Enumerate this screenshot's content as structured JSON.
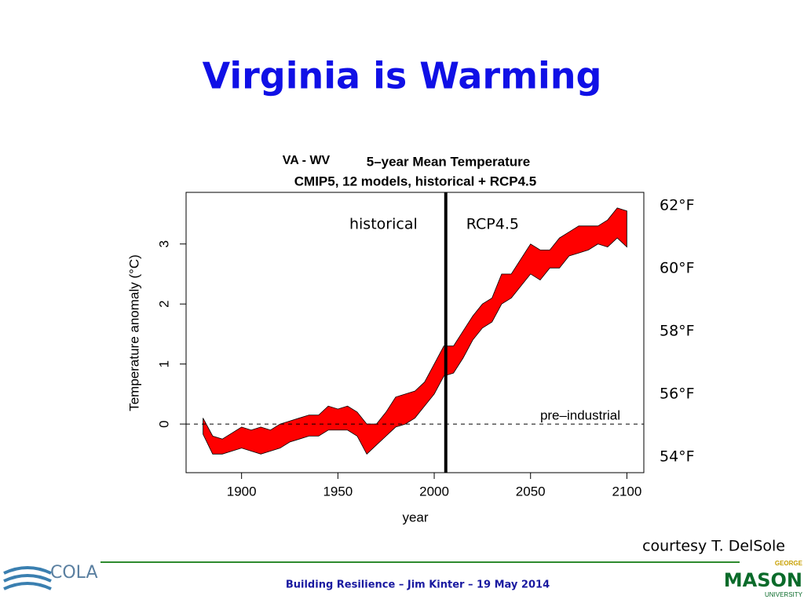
{
  "slide": {
    "title": "Virginia is Warming",
    "credit": "courtesy T. DelSole",
    "footer": "Building Resilience – Jim Kinter – 19 May 2014",
    "logo_left": "COLA",
    "logo_right_top": "GEORGE",
    "logo_right": "MASON",
    "logo_right_bottom": "UNIVERSITY"
  },
  "chart_data": {
    "type": "band",
    "region": "VA - WV",
    "title": "5–year Mean Temperature",
    "subtitle": "CMIP5, 12 models, historical + RCP4.5",
    "xlabel": "year",
    "ylabel": "Temperature anomaly (°C)",
    "color": "#ff0000",
    "annotations": [
      "historical",
      "RCP4.5",
      "pre–industrial"
    ],
    "divider_x": 2006,
    "reference_y": 0,
    "x": [
      1880,
      1885,
      1890,
      1895,
      1900,
      1905,
      1910,
      1915,
      1920,
      1925,
      1930,
      1935,
      1940,
      1945,
      1950,
      1955,
      1960,
      1965,
      1970,
      1975,
      1980,
      1985,
      1990,
      1995,
      2000,
      2005,
      2010,
      2015,
      2020,
      2025,
      2030,
      2035,
      2040,
      2045,
      2050,
      2055,
      2060,
      2065,
      2070,
      2075,
      2080,
      2085,
      2090,
      2095,
      2100
    ],
    "upper": [
      0.1,
      -0.2,
      -0.25,
      -0.15,
      -0.05,
      -0.1,
      -0.05,
      -0.1,
      0.0,
      0.05,
      0.1,
      0.15,
      0.15,
      0.3,
      0.25,
      0.3,
      0.2,
      0.0,
      0.0,
      0.2,
      0.45,
      0.5,
      0.55,
      0.7,
      1.0,
      1.3,
      1.3,
      1.55,
      1.8,
      2.0,
      2.1,
      2.5,
      2.5,
      2.75,
      3.0,
      2.9,
      2.9,
      3.1,
      3.2,
      3.3,
      3.3,
      3.3,
      3.4,
      3.6,
      3.55
    ],
    "lower": [
      -0.17,
      -0.5,
      -0.5,
      -0.45,
      -0.4,
      -0.45,
      -0.5,
      -0.45,
      -0.4,
      -0.3,
      -0.25,
      -0.2,
      -0.2,
      -0.1,
      -0.1,
      -0.1,
      -0.2,
      -0.5,
      -0.35,
      -0.2,
      -0.05,
      0.0,
      0.1,
      0.3,
      0.5,
      0.8,
      0.85,
      1.1,
      1.4,
      1.6,
      1.7,
      2.0,
      2.1,
      2.3,
      2.5,
      2.4,
      2.6,
      2.6,
      2.8,
      2.85,
      2.9,
      3.0,
      2.95,
      3.1,
      2.95
    ],
    "xlim": [
      1871.2,
      2108.8
    ],
    "xticks": [
      1900,
      1950,
      2000,
      2050,
      2100
    ],
    "ylim": [
      -0.81,
      3.86
    ],
    "yticks": [
      0,
      1,
      2,
      3
    ],
    "y2lim": [
      53.5,
      62.43
    ],
    "y2ticks": [
      {
        "value": 54,
        "label": "54°F"
      },
      {
        "value": 56,
        "label": "56°F"
      },
      {
        "value": 58,
        "label": "58°F"
      },
      {
        "value": 60,
        "label": "60°F"
      },
      {
        "value": 62,
        "label": "62°F"
      }
    ]
  }
}
